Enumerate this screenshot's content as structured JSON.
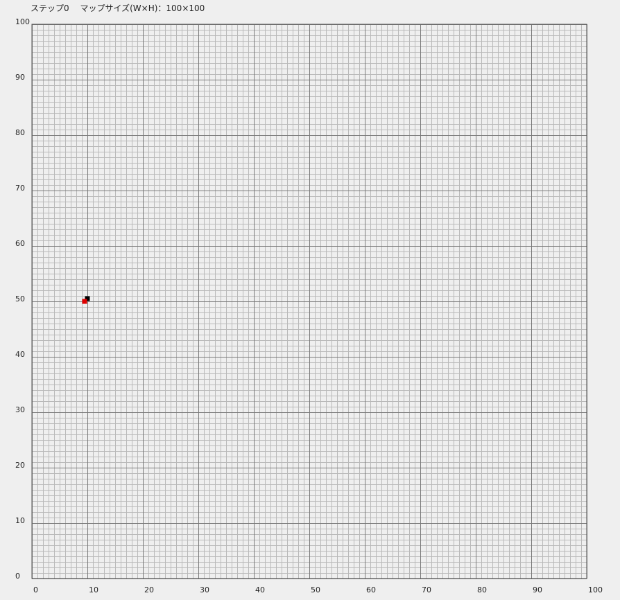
{
  "status": {
    "step_label": "ステップ0",
    "map_size_label": "マップサイズ(W×H)：100×100"
  },
  "map": {
    "width": 100,
    "height": 100,
    "x_ticks": [
      "0",
      "10",
      "20",
      "30",
      "40",
      "50",
      "60",
      "70",
      "80",
      "90",
      "100"
    ],
    "y_ticks": [
      "0",
      "10",
      "20",
      "30",
      "40",
      "50",
      "60",
      "70",
      "80",
      "90",
      "100"
    ],
    "colors": {
      "minor_grid": "#b9b9b9",
      "major_grid": "#7a7a7a",
      "border": "#555555",
      "background": "#efefef"
    },
    "markers": [
      {
        "name": "agent-black",
        "x": 10,
        "y": 50.5,
        "color": "#000000"
      },
      {
        "name": "agent-red",
        "x": 9.5,
        "y": 50,
        "color": "#e00000"
      }
    ]
  }
}
